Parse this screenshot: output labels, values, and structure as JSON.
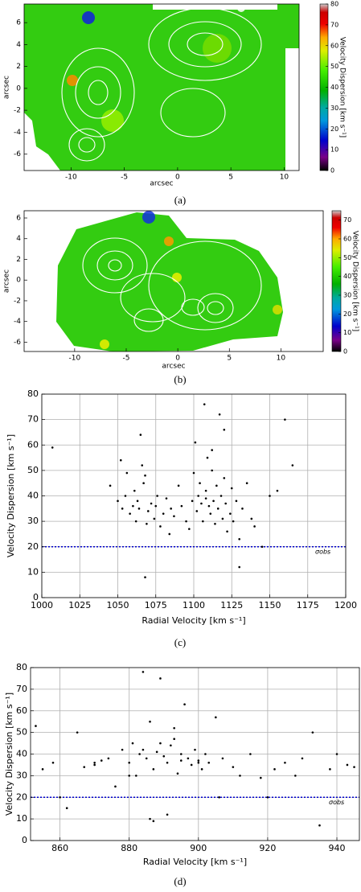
{
  "chart_data": [
    {
      "type": "map",
      "xlabel": "arcsec",
      "ylabel": "arcsec",
      "colorbar_label": "Velocity Dispersion [km s⁻¹]",
      "xlim": [
        -14.4,
        11.4
      ],
      "ylim": [
        -7.5,
        7.7
      ],
      "xticks": [
        -10,
        -5,
        0,
        5,
        10
      ],
      "yticks": [
        -6,
        -4,
        -2,
        0,
        2,
        4,
        6
      ],
      "clim": [
        0,
        80
      ],
      "cticks": [
        0,
        10,
        20,
        30,
        40,
        50,
        60,
        70,
        80
      ],
      "caption": "(a)"
    },
    {
      "type": "map",
      "xlabel": "arcsec",
      "ylabel": "arcsec",
      "colorbar_label": "Velocity Dispersion [km s⁻¹]",
      "xlim": [
        -14.9,
        14.1
      ],
      "ylim": [
        -6.9,
        6.7
      ],
      "xticks": [
        -10,
        -5,
        0,
        5,
        10
      ],
      "yticks": [
        -6,
        -4,
        -2,
        0,
        2,
        4,
        6
      ],
      "clim": [
        0,
        75
      ],
      "cticks": [
        0,
        10,
        20,
        30,
        40,
        50,
        60,
        70
      ],
      "caption": "(b)"
    },
    {
      "type": "scatter",
      "xlabel": "Radial Velocity [km s⁻¹]",
      "ylabel": "Velocity Dispersion [km s⁻¹]",
      "xlim": [
        1000,
        1200
      ],
      "ylim": [
        0,
        80
      ],
      "xticks": [
        1000,
        1025,
        1050,
        1075,
        1100,
        1125,
        1150,
        1175,
        1200
      ],
      "yticks": [
        0,
        10,
        20,
        30,
        40,
        50,
        60,
        70,
        80
      ],
      "grid": true,
      "color": "#000000",
      "hline": {
        "value": 20,
        "label": "σobs",
        "color": "#0000cc"
      },
      "caption": "(c)",
      "x": [
        1007,
        1045,
        1050,
        1052,
        1053,
        1055,
        1056,
        1058,
        1060,
        1061,
        1062,
        1063,
        1064,
        1065,
        1066,
        1067,
        1068,
        1069,
        1070,
        1072,
        1074,
        1075,
        1076,
        1078,
        1080,
        1082,
        1084,
        1085,
        1087,
        1090,
        1092,
        1095,
        1097,
        1099,
        1100,
        1101,
        1102,
        1103,
        1104,
        1105,
        1106,
        1107,
        1108,
        1109,
        1110,
        1111,
        1112,
        1113,
        1114,
        1115,
        1116,
        1117,
        1118,
        1119,
        1120,
        1121,
        1122,
        1124,
        1125,
        1126,
        1128,
        1130,
        1132,
        1135,
        1138,
        1140,
        1145,
        1150,
        1155,
        1160,
        1165,
        1068,
        1112,
        1120,
        1108,
        1130
      ],
      "y": [
        59,
        44,
        38,
        54,
        35,
        40,
        49,
        33,
        36,
        42,
        30,
        38,
        35,
        64,
        52,
        45,
        8,
        29,
        34,
        37,
        31,
        36,
        40,
        28,
        33,
        39,
        25,
        35,
        32,
        44,
        36,
        30,
        27,
        38,
        49,
        61,
        34,
        40,
        45,
        37,
        30,
        76,
        42,
        55,
        36,
        33,
        50,
        38,
        29,
        44,
        35,
        72,
        40,
        31,
        66,
        37,
        26,
        33,
        43,
        30,
        38,
        23,
        35,
        45,
        31,
        28,
        20,
        40,
        42,
        70,
        52,
        48,
        58,
        47,
        39,
        12
      ]
    },
    {
      "type": "scatter",
      "xlabel": "Radial Velocity [km s⁻¹]",
      "ylabel": "Velocity Dispersion [km s⁻¹]",
      "xlim": [
        851.5,
        946.5
      ],
      "ylim": [
        0,
        80
      ],
      "xticks": [
        860,
        880,
        900,
        920,
        940
      ],
      "yticks": [
        0,
        10,
        20,
        30,
        40,
        50,
        60,
        70,
        80
      ],
      "grid": true,
      "color": "#000000",
      "hline": {
        "value": 20,
        "label": "σobs",
        "color": "#0000cc"
      },
      "caption": "(d)",
      "x": [
        853,
        855,
        858,
        860,
        862,
        865,
        867,
        870,
        872,
        874,
        876,
        878,
        880,
        881,
        882,
        883,
        884,
        885,
        886,
        887,
        888,
        889,
        890,
        891,
        892,
        893,
        894,
        895,
        896,
        897,
        898,
        899,
        900,
        901,
        902,
        903,
        905,
        907,
        910,
        912,
        915,
        918,
        920,
        922,
        925,
        928,
        930,
        933,
        935,
        938,
        940,
        943,
        945,
        887,
        889,
        891,
        895,
        884,
        900,
        870,
        880,
        893,
        906,
        886
      ],
      "y": [
        53,
        33,
        36,
        20,
        15,
        50,
        34,
        35,
        37,
        38,
        25,
        42,
        36,
        45,
        30,
        40,
        78,
        38,
        55,
        33,
        41,
        75,
        39,
        36,
        44,
        47,
        31,
        40,
        63,
        38,
        35,
        42,
        37,
        33,
        40,
        36,
        57,
        38,
        34,
        30,
        40,
        29,
        20,
        33,
        36,
        30,
        38,
        50,
        7,
        33,
        40,
        35,
        34,
        9,
        45,
        12,
        37,
        42,
        36,
        36,
        30,
        52,
        20,
        10
      ]
    }
  ]
}
